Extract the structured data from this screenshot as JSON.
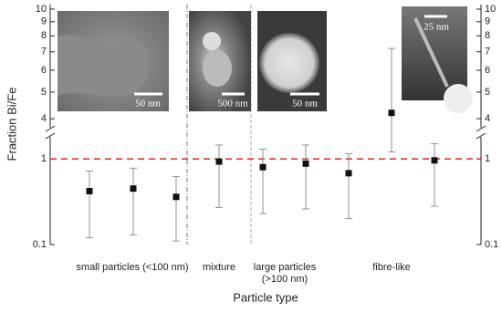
{
  "chart_data": {
    "type": "errorbar",
    "y_label": "Fraction Bi/Fe",
    "x_label": "Particle type",
    "log_scale": true,
    "y_segments": [
      {
        "ylim": [
          0.1,
          2.04
        ],
        "yticks": [
          0.1,
          1
        ]
      },
      {
        "ylim": [
          3.57,
          10
        ],
        "yticks": [
          4,
          5,
          6,
          7,
          8,
          9,
          10
        ]
      }
    ],
    "reference_line": 1,
    "reference_color": "#e8261e",
    "marker_color": "#111111",
    "groups": [
      {
        "label": "small particles (<100 nm)",
        "values": [
          0.42,
          0.45,
          0.36
        ],
        "lower": [
          0.12,
          0.13,
          0.11
        ],
        "upper": [
          0.72,
          0.78,
          0.62
        ]
      },
      {
        "label": "mixture",
        "values": [
          0.93
        ],
        "lower": [
          0.27
        ],
        "upper": [
          1.45
        ]
      },
      {
        "label": "large particles (>100 nm)",
        "values": [
          0.8,
          0.88
        ],
        "lower": [
          0.23,
          0.26
        ],
        "upper": [
          1.3,
          1.45
        ]
      },
      {
        "label": "fibre-like",
        "values": [
          0.68,
          4.2,
          0.96
        ],
        "lower": [
          0.2,
          1.2,
          0.28
        ],
        "upper": [
          1.15,
          7.2,
          1.5
        ]
      }
    ],
    "annotations": [
      "50 nm",
      "500 nm",
      "50 nm",
      "25 nm"
    ]
  }
}
